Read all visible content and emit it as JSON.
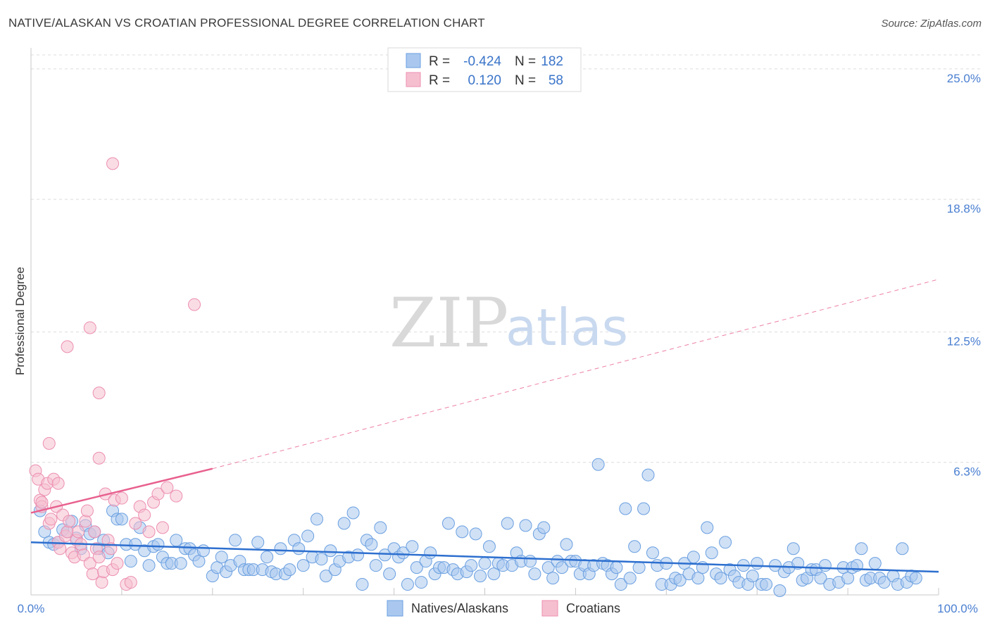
{
  "header": {
    "title": "NATIVE/ALASKAN VS CROATIAN PROFESSIONAL DEGREE CORRELATION CHART",
    "source": "Source: ZipAtlas.com"
  },
  "watermark": {
    "zip": "ZIP",
    "atlas": "atlas"
  },
  "legend": {
    "rows": [
      {
        "r_label": "R =",
        "r_value": "-0.424",
        "n_label": "N =",
        "n_value": "182"
      },
      {
        "r_label": "R =",
        "r_value": "0.120",
        "n_label": "N =",
        "n_value": "58"
      }
    ]
  },
  "bottom_legend": {
    "items": [
      {
        "label": "Natives/Alaskans"
      },
      {
        "label": "Croatians"
      }
    ]
  },
  "colors": {
    "blue_fill": "#aac8ef",
    "blue_stroke": "#6a9fe0",
    "blue_line": "#2d6fcf",
    "pink_fill": "#f6bfd0",
    "pink_stroke": "#ec8fb0",
    "pink_line": "#e8608f",
    "grid": "#dcdcdc",
    "tick_text": "#4a7fd1"
  },
  "chart_data": {
    "type": "scatter",
    "title": "NATIVE/ALASKAN VS CROATIAN PROFESSIONAL DEGREE CORRELATION CHART",
    "xlabel": "",
    "ylabel": "Professional Degree",
    "xlim": [
      0,
      100
    ],
    "ylim": [
      0,
      26
    ],
    "x_tick_labels": [
      "0.0%",
      "100.0%"
    ],
    "y_ticks": [
      6.3,
      12.5,
      18.8,
      25.0
    ],
    "y_tick_labels": [
      "6.3%",
      "12.5%",
      "18.8%",
      "25.0%"
    ],
    "series": [
      {
        "name": "Natives/Alaskans",
        "r": -0.424,
        "n": 182,
        "trend": {
          "x0": 0,
          "y0": 2.5,
          "x1": 100,
          "y1": 1.1
        },
        "points": [
          [
            1,
            4.0
          ],
          [
            1.5,
            3.0
          ],
          [
            2,
            2.5
          ],
          [
            2.5,
            2.4
          ],
          [
            3,
            2.5
          ],
          [
            3.5,
            3.1
          ],
          [
            4,
            3.0
          ],
          [
            4.5,
            3.5
          ],
          [
            5,
            2.7
          ],
          [
            5.5,
            2.2
          ],
          [
            6,
            3.3
          ],
          [
            6.5,
            2.9
          ],
          [
            7,
            3.0
          ],
          [
            7.5,
            2.2
          ],
          [
            8,
            2.6
          ],
          [
            8.5,
            2.0
          ],
          [
            9,
            4.0
          ],
          [
            9.5,
            3.6
          ],
          [
            10,
            3.6
          ],
          [
            10.5,
            2.4
          ],
          [
            11,
            1.6
          ],
          [
            11.5,
            2.4
          ],
          [
            12,
            3.2
          ],
          [
            12.5,
            2.1
          ],
          [
            13,
            1.4
          ],
          [
            13.5,
            2.3
          ],
          [
            14,
            2.4
          ],
          [
            14.5,
            1.8
          ],
          [
            15,
            1.5
          ],
          [
            15.5,
            1.5
          ],
          [
            16,
            2.6
          ],
          [
            16.5,
            1.5
          ],
          [
            17,
            2.2
          ],
          [
            17.5,
            2.2
          ],
          [
            18,
            1.9
          ],
          [
            18.5,
            1.6
          ],
          [
            19,
            2.1
          ],
          [
            20,
            0.9
          ],
          [
            20.5,
            1.3
          ],
          [
            21,
            1.8
          ],
          [
            21.5,
            1.1
          ],
          [
            22,
            1.4
          ],
          [
            22.5,
            2.6
          ],
          [
            23,
            1.6
          ],
          [
            23.5,
            1.2
          ],
          [
            24,
            1.2
          ],
          [
            24.5,
            1.2
          ],
          [
            25,
            2.5
          ],
          [
            25.5,
            1.2
          ],
          [
            26,
            1.8
          ],
          [
            26.5,
            1.1
          ],
          [
            27,
            1.0
          ],
          [
            27.5,
            2.2
          ],
          [
            28,
            1.0
          ],
          [
            28.5,
            1.2
          ],
          [
            29,
            2.6
          ],
          [
            29.5,
            2.2
          ],
          [
            30,
            1.4
          ],
          [
            30.5,
            2.8
          ],
          [
            31,
            1.8
          ],
          [
            31.5,
            3.6
          ],
          [
            32,
            1.7
          ],
          [
            32.5,
            0.9
          ],
          [
            33,
            2.1
          ],
          [
            33.5,
            1.2
          ],
          [
            34,
            1.6
          ],
          [
            34.5,
            3.4
          ],
          [
            35,
            1.8
          ],
          [
            35.5,
            3.9
          ],
          [
            36,
            1.9
          ],
          [
            36.5,
            0.5
          ],
          [
            37,
            2.6
          ],
          [
            37.5,
            2.4
          ],
          [
            38,
            1.4
          ],
          [
            38.5,
            3.2
          ],
          [
            39,
            1.9
          ],
          [
            39.5,
            1.0
          ],
          [
            40,
            2.2
          ],
          [
            40.5,
            1.8
          ],
          [
            41,
            2.0
          ],
          [
            41.5,
            0.5
          ],
          [
            42,
            2.3
          ],
          [
            42.5,
            1.3
          ],
          [
            43,
            0.6
          ],
          [
            43.5,
            1.6
          ],
          [
            44,
            2.0
          ],
          [
            44.5,
            1.0
          ],
          [
            45,
            1.3
          ],
          [
            45.5,
            1.3
          ],
          [
            46,
            3.4
          ],
          [
            46.5,
            1.2
          ],
          [
            47,
            1.0
          ],
          [
            47.5,
            3.0
          ],
          [
            48,
            1.1
          ],
          [
            48.5,
            1.4
          ],
          [
            49,
            2.9
          ],
          [
            49.5,
            0.9
          ],
          [
            50,
            1.5
          ],
          [
            50.5,
            2.3
          ],
          [
            51,
            1.0
          ],
          [
            51.5,
            1.5
          ],
          [
            52,
            1.4
          ],
          [
            52.5,
            3.4
          ],
          [
            53,
            1.4
          ],
          [
            53.5,
            2.0
          ],
          [
            54,
            1.6
          ],
          [
            54.5,
            3.3
          ],
          [
            55,
            1.6
          ],
          [
            55.5,
            1.0
          ],
          [
            56,
            2.9
          ],
          [
            56.5,
            3.2
          ],
          [
            57,
            1.3
          ],
          [
            57.5,
            0.8
          ],
          [
            58,
            1.6
          ],
          [
            58.5,
            1.3
          ],
          [
            59,
            2.4
          ],
          [
            59.5,
            1.6
          ],
          [
            60,
            1.6
          ],
          [
            60.5,
            1.0
          ],
          [
            61,
            1.4
          ],
          [
            61.5,
            1.0
          ],
          [
            62,
            1.4
          ],
          [
            62.5,
            6.2
          ],
          [
            63,
            1.5
          ],
          [
            63.5,
            1.4
          ],
          [
            64,
            1.0
          ],
          [
            64.5,
            1.3
          ],
          [
            65,
            0.5
          ],
          [
            65.5,
            4.1
          ],
          [
            66,
            0.8
          ],
          [
            66.5,
            2.3
          ],
          [
            67,
            1.3
          ],
          [
            67.5,
            4.1
          ],
          [
            68,
            5.7
          ],
          [
            68.5,
            2.0
          ],
          [
            69,
            1.4
          ],
          [
            69.5,
            0.5
          ],
          [
            70,
            1.5
          ],
          [
            70.5,
            0.5
          ],
          [
            71,
            0.8
          ],
          [
            71.5,
            0.7
          ],
          [
            72,
            1.5
          ],
          [
            72.5,
            1.0
          ],
          [
            73,
            1.8
          ],
          [
            73.5,
            0.8
          ],
          [
            74,
            1.3
          ],
          [
            74.5,
            3.2
          ],
          [
            75,
            2.0
          ],
          [
            75.5,
            1.0
          ],
          [
            76,
            0.8
          ],
          [
            76.5,
            2.5
          ],
          [
            77,
            1.2
          ],
          [
            77.5,
            0.9
          ],
          [
            78,
            0.6
          ],
          [
            78.5,
            1.4
          ],
          [
            79,
            0.5
          ],
          [
            79.5,
            0.9
          ],
          [
            80,
            1.5
          ],
          [
            80.5,
            0.5
          ],
          [
            81,
            0.5
          ],
          [
            82,
            1.4
          ],
          [
            82.5,
            0.2
          ],
          [
            83,
            1.1
          ],
          [
            83.5,
            1.3
          ],
          [
            84,
            2.2
          ],
          [
            84.5,
            1.5
          ],
          [
            85,
            0.7
          ],
          [
            85.5,
            0.8
          ],
          [
            86,
            1.2
          ],
          [
            86.5,
            1.2
          ],
          [
            87,
            0.8
          ],
          [
            87.5,
            1.4
          ],
          [
            88,
            0.5
          ],
          [
            89,
            0.6
          ],
          [
            89.5,
            1.3
          ],
          [
            90,
            0.8
          ],
          [
            90.5,
            1.3
          ],
          [
            91,
            1.4
          ],
          [
            91.5,
            2.2
          ],
          [
            92,
            0.7
          ],
          [
            92.5,
            0.8
          ],
          [
            93,
            1.5
          ],
          [
            93.5,
            0.8
          ],
          [
            94,
            0.6
          ],
          [
            95,
            0.9
          ],
          [
            95.5,
            0.5
          ],
          [
            96,
            2.2
          ],
          [
            96.5,
            0.6
          ],
          [
            97,
            0.9
          ],
          [
            97.5,
            0.8
          ]
        ]
      },
      {
        "name": "Croatians",
        "r": 0.12,
        "n": 58,
        "trend": {
          "x0": 0,
          "y0": 3.9,
          "x1": 20,
          "y1": 6.0,
          "dash_x1": 100,
          "dash_y1": 15.0
        },
        "points": [
          [
            0.5,
            5.9
          ],
          [
            0.8,
            5.5
          ],
          [
            1,
            4.5
          ],
          [
            1.2,
            4.2
          ],
          [
            1.5,
            5.0
          ],
          [
            1.8,
            5.3
          ],
          [
            2,
            3.4
          ],
          [
            2.2,
            3.6
          ],
          [
            2.5,
            5.5
          ],
          [
            2.8,
            4.2
          ],
          [
            3,
            2.5
          ],
          [
            3.2,
            2.2
          ],
          [
            3.5,
            3.8
          ],
          [
            3.8,
            2.8
          ],
          [
            4,
            3.0
          ],
          [
            4.2,
            3.5
          ],
          [
            4.5,
            2.0
          ],
          [
            4.8,
            1.8
          ],
          [
            5,
            2.6
          ],
          [
            5.2,
            3.0
          ],
          [
            5.5,
            2.4
          ],
          [
            5.8,
            1.9
          ],
          [
            6,
            3.5
          ],
          [
            6.2,
            4.0
          ],
          [
            6.5,
            1.5
          ],
          [
            6.8,
            1.0
          ],
          [
            7,
            3.0
          ],
          [
            7.2,
            2.2
          ],
          [
            7.5,
            1.8
          ],
          [
            7.8,
            0.6
          ],
          [
            8,
            1.1
          ],
          [
            8.2,
            4.8
          ],
          [
            8.5,
            2.6
          ],
          [
            8.8,
            2.2
          ],
          [
            9,
            1.2
          ],
          [
            9.2,
            4.5
          ],
          [
            9.5,
            1.5
          ],
          [
            10,
            4.6
          ],
          [
            10.5,
            0.5
          ],
          [
            11,
            0.6
          ],
          [
            11.5,
            3.4
          ],
          [
            12,
            4.2
          ],
          [
            12.5,
            3.8
          ],
          [
            13,
            3.0
          ],
          [
            13.5,
            4.4
          ],
          [
            14,
            4.8
          ],
          [
            4,
            11.8
          ],
          [
            6.5,
            12.7
          ],
          [
            9,
            20.5
          ],
          [
            18,
            13.8
          ],
          [
            7.5,
            9.6
          ],
          [
            2,
            7.2
          ],
          [
            7.5,
            6.5
          ],
          [
            3,
            5.3
          ],
          [
            1.2,
            4.4
          ],
          [
            14.5,
            3.2
          ],
          [
            15,
            5.1
          ],
          [
            16,
            4.7
          ]
        ]
      }
    ]
  }
}
